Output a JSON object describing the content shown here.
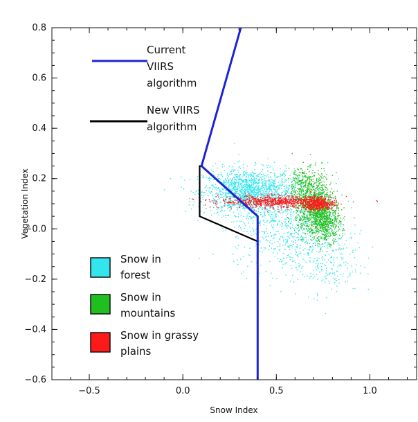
{
  "chart_data": {
    "type": "scatter",
    "xlabel": "Snow Index",
    "ylabel": "Vegetation Index",
    "xlim": [
      -0.7,
      1.25
    ],
    "ylim": [
      -0.6,
      0.8
    ],
    "x_ticks": [
      -0.5,
      0.0,
      0.5,
      1.0
    ],
    "x_tick_labels": [
      "−0.5",
      "0.0",
      "0.5",
      "1.0"
    ],
    "y_ticks": [
      -0.6,
      -0.4,
      -0.2,
      0.0,
      0.2,
      0.4,
      0.6,
      0.8
    ],
    "y_tick_labels": [
      "−0.6",
      "−0.4",
      "−0.2",
      "−0.0",
      "0.2",
      "0.4",
      "0.6",
      "0.8"
    ],
    "grid": false,
    "lines": [
      {
        "name": "Current VIIRS algorithm",
        "label_lines": [
          "Current",
          "VIIRS",
          "algorithm"
        ],
        "color": "#1a23d8",
        "points": [
          [
            0.31,
            0.8
          ],
          [
            0.1,
            0.25
          ],
          [
            0.4,
            0.05
          ],
          [
            0.4,
            -0.6
          ]
        ]
      },
      {
        "name": "New VIIRS algorithm",
        "label_lines": [
          "New  VIIRS",
          "algorithm"
        ],
        "color": "#000000",
        "points": [
          [
            0.31,
            0.8
          ],
          [
            0.1,
            0.25
          ],
          [
            0.09,
            0.25
          ],
          [
            0.09,
            0.05
          ],
          [
            0.4,
            -0.05
          ],
          [
            0.4,
            -0.6
          ]
        ]
      }
    ],
    "scatter_series": [
      {
        "name": "Snow in forest",
        "label_lines": [
          "Snow in",
          "forest"
        ],
        "color": "#33e6ee",
        "clusters": [
          {
            "cx": 0.35,
            "cy": 0.15,
            "sx": 0.12,
            "sy": 0.045,
            "n": 1500
          },
          {
            "cx": 0.55,
            "cy": 0.02,
            "sx": 0.14,
            "sy": 0.09,
            "n": 700
          },
          {
            "cx": 0.75,
            "cy": -0.12,
            "sx": 0.1,
            "sy": 0.07,
            "n": 250
          }
        ]
      },
      {
        "name": "Snow in mountains",
        "label_lines": [
          "Snow in",
          "mountains"
        ],
        "color": "#1fbf1f",
        "clusters": [
          {
            "cx": 0.7,
            "cy": 0.1,
            "sx": 0.05,
            "sy": 0.06,
            "n": 1000
          },
          {
            "cx": 0.76,
            "cy": 0.03,
            "sx": 0.04,
            "sy": 0.04,
            "n": 500
          },
          {
            "cx": 0.62,
            "cy": 0.18,
            "sx": 0.03,
            "sy": 0.04,
            "n": 150
          }
        ]
      },
      {
        "name": "Snow in grassy plains",
        "label_lines": [
          "Snow in grassy",
          "plains"
        ],
        "color": "#ff1a1a",
        "clusters": [
          {
            "cx": 0.5,
            "cy": 0.11,
            "sx": 0.15,
            "sy": 0.012,
            "n": 800
          },
          {
            "cx": 0.72,
            "cy": 0.1,
            "sx": 0.04,
            "sy": 0.012,
            "n": 400
          }
        ]
      }
    ]
  }
}
